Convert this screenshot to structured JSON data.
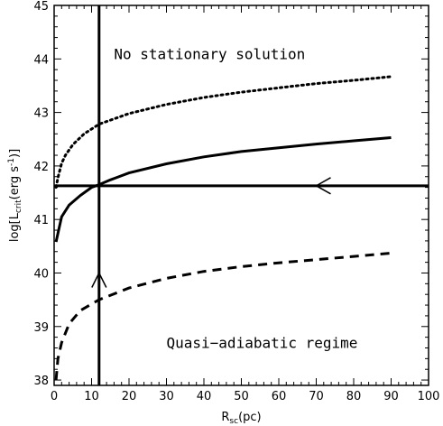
{
  "chart_data": {
    "type": "line",
    "xlabel_main": "R",
    "xlabel_sub": "sc",
    "xlabel_unit": "(pc)",
    "ylabel_pre": "log[L",
    "ylabel_sub": "crit",
    "ylabel_mid": "(erg s",
    "ylabel_sup": "-1",
    "ylabel_post": ")]",
    "xlim": [
      0,
      100
    ],
    "ylim": [
      37.9,
      45
    ],
    "x_ticks": [
      0,
      10,
      20,
      30,
      40,
      50,
      60,
      70,
      80,
      90,
      100
    ],
    "y_ticks": [
      38,
      39,
      40,
      41,
      42,
      43,
      44,
      45
    ],
    "grid": false,
    "series": [
      {
        "style": "dotted",
        "x": [
          0.5,
          1,
          2,
          3,
          5,
          8,
          12,
          20,
          30,
          40,
          50,
          60,
          70,
          80,
          90
        ],
        "y": [
          41.6,
          41.78,
          42.05,
          42.2,
          42.4,
          42.6,
          42.78,
          42.98,
          43.15,
          43.28,
          43.38,
          43.46,
          43.54,
          43.6,
          43.67
        ]
      },
      {
        "style": "solid",
        "x": [
          0.5,
          2,
          4,
          7,
          10,
          12,
          15,
          20,
          30,
          40,
          50,
          60,
          70,
          80,
          90
        ],
        "y": [
          40.58,
          41.05,
          41.27,
          41.45,
          41.6,
          41.65,
          41.74,
          41.87,
          42.04,
          42.17,
          42.27,
          42.34,
          42.41,
          42.47,
          42.53
        ]
      },
      {
        "style": "dashed",
        "x": [
          0.5,
          1,
          2,
          4,
          7,
          12,
          20,
          30,
          40,
          50,
          60,
          70,
          80,
          90
        ],
        "y": [
          38.0,
          38.4,
          38.7,
          39.05,
          39.3,
          39.5,
          39.72,
          39.9,
          40.03,
          40.12,
          40.19,
          40.25,
          40.31,
          40.37
        ]
      }
    ],
    "reference_lines": {
      "vertical_x": 12,
      "horizontal_y": 41.63
    },
    "arrows": [
      {
        "direction": "left",
        "x": 70,
        "y": 41.63
      },
      {
        "direction": "up",
        "x": 12,
        "y": 40.0
      }
    ],
    "annotations": [
      {
        "text": "No stationary solution",
        "x": 16,
        "y": 44.0
      },
      {
        "text": "Quasi−adiabatic regime",
        "x": 30,
        "y": 38.6
      }
    ]
  }
}
